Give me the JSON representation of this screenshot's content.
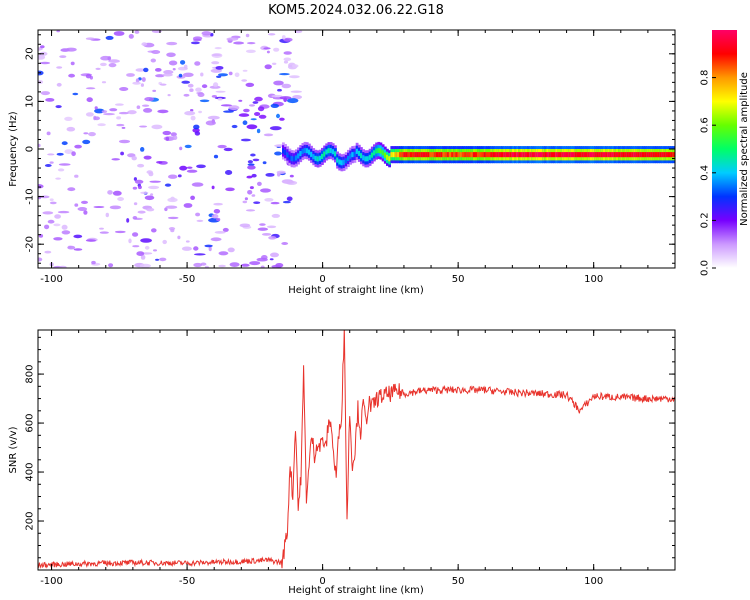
{
  "title": "KOM5.2024.032.06.22.G18",
  "chart_data": [
    {
      "type": "heatmap",
      "title": "",
      "xlabel": "Height of straight line (km)",
      "ylabel": "Frequency (Hz)",
      "xlim": [
        -105,
        130
      ],
      "ylim": [
        -25,
        25
      ],
      "xticks": [
        -100,
        -50,
        0,
        50,
        100
      ],
      "yticks": [
        -20,
        -10,
        0,
        10,
        20
      ],
      "xtick_labels": [
        "-100",
        "-50",
        "0",
        "50",
        "100"
      ],
      "ytick_labels": [
        "-20",
        "-10",
        "0",
        "10",
        "20"
      ],
      "grid": false,
      "colorbar": {
        "label": "Normalized spectral amplitude",
        "range": [
          0,
          1
        ],
        "ticks": [
          0.0,
          0.2,
          0.4,
          0.6,
          0.8
        ],
        "tick_labels": [
          "0.0",
          "0.2",
          "0.4",
          "0.6",
          "0.8"
        ],
        "colors": [
          "#ffffff",
          "#cc99ff",
          "#7700ff",
          "#0033ff",
          "#00ccff",
          "#00ff66",
          "#66ff00",
          "#ffff00",
          "#ff9900",
          "#ff0000",
          "#ff0066"
        ]
      },
      "signal_band": {
        "x_start": -15,
        "x_end": 130,
        "center_freq": -1.2,
        "half_width": 1.2,
        "amplitude_profile": [
          {
            "x": -15,
            "amp": 0.3
          },
          {
            "x": -5,
            "amp": 0.4
          },
          {
            "x": 0,
            "amp": 0.45
          },
          {
            "x": 10,
            "amp": 0.35
          },
          {
            "x": 20,
            "amp": 0.5
          },
          {
            "x": 30,
            "amp": 0.9
          },
          {
            "x": 50,
            "amp": 0.85
          },
          {
            "x": 70,
            "amp": 0.95
          },
          {
            "x": 100,
            "amp": 0.95
          },
          {
            "x": 130,
            "amp": 0.9
          }
        ]
      },
      "noise_region": {
        "x_start": -105,
        "x_end": -15,
        "freq_range": [
          -25,
          25
        ],
        "amp_range": [
          0.05,
          0.3
        ]
      }
    },
    {
      "type": "line",
      "title": "",
      "xlabel": "Height of straight line (km)",
      "ylabel": "SNR (v/v)",
      "xlim": [
        -105,
        130
      ],
      "ylim": [
        0,
        980
      ],
      "xticks": [
        -100,
        -50,
        0,
        50,
        100
      ],
      "yticks": [
        200,
        400,
        600,
        800
      ],
      "xtick_labels": [
        "-100",
        "-50",
        "0",
        "50",
        "100"
      ],
      "ytick_labels": [
        "200",
        "400",
        "600",
        "800"
      ],
      "grid": false,
      "series": [
        {
          "color": "#e8332c",
          "x": [
            -105,
            -90,
            -70,
            -50,
            -30,
            -20,
            -15,
            -13,
            -12,
            -11,
            -10,
            -9,
            -8,
            -7,
            -6,
            -5,
            -4,
            -3,
            -2,
            -1,
            0,
            1,
            2,
            3,
            4,
            5,
            6,
            7,
            8,
            9,
            10,
            11,
            12,
            13,
            14,
            15,
            16,
            17,
            18,
            20,
            22,
            25,
            28,
            30,
            35,
            40,
            50,
            60,
            70,
            80,
            90,
            95,
            100,
            110,
            120,
            130
          ],
          "y": [
            20,
            25,
            30,
            28,
            35,
            40,
            30,
            160,
            440,
            300,
            600,
            250,
            380,
            810,
            300,
            420,
            550,
            470,
            520,
            500,
            540,
            490,
            580,
            620,
            470,
            380,
            560,
            640,
            980,
            200,
            650,
            420,
            500,
            660,
            560,
            680,
            600,
            690,
            660,
            700,
            710,
            720,
            730,
            720,
            730,
            735,
            735,
            735,
            725,
            720,
            715,
            650,
            710,
            705,
            700,
            700
          ]
        }
      ]
    }
  ]
}
